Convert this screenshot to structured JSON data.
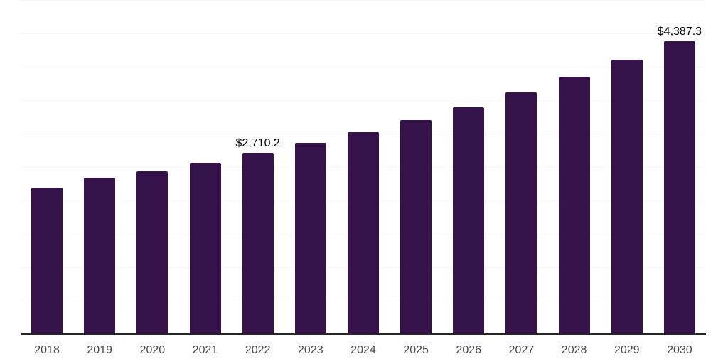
{
  "chart_data": {
    "type": "bar",
    "title": "",
    "xlabel": "",
    "ylabel": "",
    "categories": [
      "2018",
      "2019",
      "2020",
      "2021",
      "2022",
      "2023",
      "2024",
      "2025",
      "2026",
      "2027",
      "2028",
      "2029",
      "2030"
    ],
    "values": [
      2190,
      2345,
      2440,
      2565,
      2710.2,
      2860,
      3020,
      3200,
      3395,
      3615,
      3850,
      4105,
      4387.3
    ],
    "data_labels": [
      "",
      "",
      "",
      "",
      "$2,710.2",
      "",
      "",
      "",
      "",
      "",
      "",
      "",
      "$4,387.3"
    ],
    "ylim": [
      0,
      5000
    ],
    "gridline_step": 500,
    "grid": true,
    "legend": false
  },
  "colors": {
    "bar": "#36124B",
    "gridline": "#F6F6F6",
    "axis_line": "#262626",
    "tick_label": "#4A4A4A",
    "data_label": "#000000",
    "background": "#FFFFFF"
  }
}
